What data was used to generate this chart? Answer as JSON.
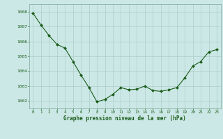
{
  "x": [
    0,
    1,
    2,
    3,
    4,
    5,
    6,
    7,
    8,
    9,
    10,
    11,
    12,
    13,
    14,
    15,
    16,
    17,
    18,
    19,
    20,
    21,
    22,
    23
  ],
  "y": [
    1007.9,
    1007.1,
    1006.4,
    1005.8,
    1005.55,
    1004.65,
    1003.75,
    1002.9,
    1001.95,
    1002.1,
    1002.45,
    1002.9,
    1002.75,
    1002.8,
    1003.0,
    1002.7,
    1002.65,
    1002.75,
    1002.9,
    1003.55,
    1004.35,
    1004.65,
    1005.3,
    1005.45
  ],
  "line_color": "#1a5c1a",
  "marker_color": "#1a5c1a",
  "bg_color": "#cce8e6",
  "grid_color": "#aaccca",
  "xlabel": "Graphe pression niveau de la mer (hPa)",
  "xlabel_color": "#1a5c1a",
  "tick_color": "#1a5c1a",
  "spine_color": "#7aaa99",
  "ylim_min": 1001.5,
  "ylim_max": 1008.5,
  "ytick_values": [
    1002,
    1003,
    1004,
    1005,
    1006,
    1007,
    1008
  ],
  "xlim_min": -0.5,
  "xlim_max": 23.5
}
